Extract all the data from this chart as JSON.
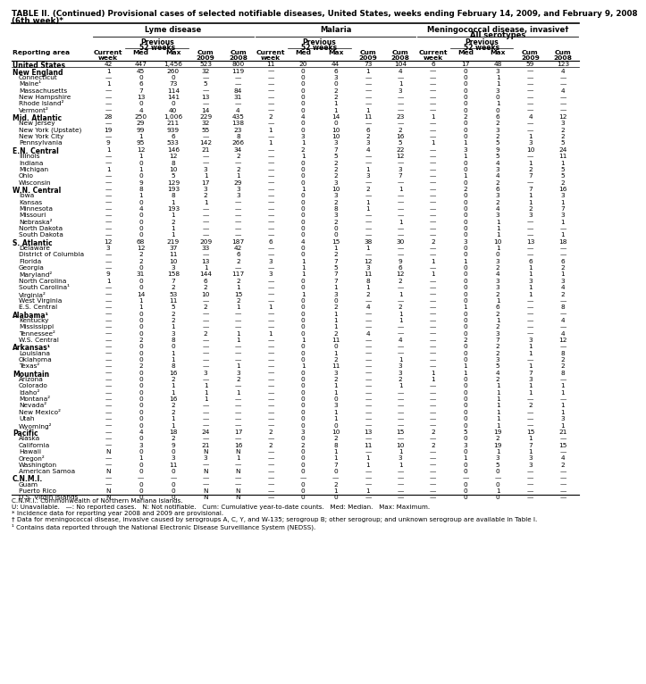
{
  "title": "TABLE II. (Continued) Provisional cases of selected notifiable diseases, United States, weeks ending February 14, 2009, and February 9, 2008",
  "subtitle": "(6th week)*",
  "rows": [
    [
      "United States",
      "42",
      "447",
      "1,456",
      "523",
      "800",
      "11",
      "20",
      "44",
      "73",
      "104",
      "6",
      "17",
      "48",
      "59",
      "123"
    ],
    [
      "New England",
      "1",
      "45",
      "260",
      "32",
      "119",
      "—",
      "0",
      "6",
      "1",
      "4",
      "—",
      "0",
      "3",
      "—",
      "4"
    ],
    [
      "Connecticut",
      "—",
      "0",
      "0",
      "—",
      "—",
      "—",
      "0",
      "3",
      "—",
      "—",
      "—",
      "0",
      "1",
      "—",
      "—"
    ],
    [
      "Maine¹",
      "1",
      "6",
      "73",
      "5",
      "—",
      "—",
      "0",
      "0",
      "—",
      "1",
      "—",
      "0",
      "1",
      "—",
      "—"
    ],
    [
      "Massachusetts",
      "—",
      "7",
      "114",
      "—",
      "84",
      "—",
      "0",
      "2",
      "—",
      "3",
      "—",
      "0",
      "3",
      "—",
      "4"
    ],
    [
      "New Hampshire",
      "—",
      "13",
      "141",
      "13",
      "31",
      "—",
      "0",
      "2",
      "—",
      "—",
      "—",
      "0",
      "0",
      "—",
      "—"
    ],
    [
      "Rhode Island²",
      "—",
      "0",
      "0",
      "—",
      "—",
      "—",
      "0",
      "1",
      "—",
      "—",
      "—",
      "0",
      "1",
      "—",
      "—"
    ],
    [
      "Vermont²",
      "—",
      "4",
      "40",
      "14",
      "4",
      "—",
      "0",
      "1",
      "1",
      "—",
      "—",
      "0",
      "0",
      "—",
      "—"
    ],
    [
      "Mid. Atlantic",
      "28",
      "250",
      "1,006",
      "229",
      "435",
      "2",
      "4",
      "14",
      "11",
      "23",
      "1",
      "2",
      "6",
      "4",
      "12"
    ],
    [
      "New Jersey",
      "—",
      "29",
      "211",
      "32",
      "138",
      "—",
      "0",
      "0",
      "—",
      "—",
      "—",
      "0",
      "2",
      "—",
      "3"
    ],
    [
      "New York (Upstate)",
      "19",
      "99",
      "939",
      "55",
      "23",
      "1",
      "0",
      "10",
      "6",
      "2",
      "—",
      "0",
      "3",
      "—",
      "2"
    ],
    [
      "New York City",
      "—",
      "1",
      "6",
      "—",
      "8",
      "—",
      "3",
      "10",
      "2",
      "16",
      "—",
      "0",
      "2",
      "1",
      "2"
    ],
    [
      "Pennsylvania",
      "9",
      "95",
      "533",
      "142",
      "266",
      "1",
      "1",
      "3",
      "3",
      "5",
      "1",
      "1",
      "5",
      "3",
      "5"
    ],
    [
      "E.N. Central",
      "1",
      "12",
      "146",
      "21",
      "34",
      "—",
      "2",
      "7",
      "4",
      "22",
      "—",
      "3",
      "9",
      "10",
      "24"
    ],
    [
      "Illinois",
      "—",
      "1",
      "12",
      "—",
      "2",
      "—",
      "1",
      "5",
      "—",
      "12",
      "—",
      "1",
      "5",
      "—",
      "11"
    ],
    [
      "Indiana",
      "—",
      "0",
      "8",
      "—",
      "—",
      "—",
      "0",
      "2",
      "—",
      "—",
      "—",
      "0",
      "4",
      "1",
      "1"
    ],
    [
      "Michigan",
      "1",
      "1",
      "10",
      "3",
      "2",
      "—",
      "0",
      "2",
      "1",
      "3",
      "—",
      "0",
      "3",
      "2",
      "5"
    ],
    [
      "Ohio",
      "—",
      "0",
      "5",
      "1",
      "1",
      "—",
      "0",
      "2",
      "3",
      "7",
      "—",
      "1",
      "4",
      "7",
      "5"
    ],
    [
      "Wisconsin",
      "—",
      "9",
      "129",
      "17",
      "29",
      "—",
      "0",
      "3",
      "—",
      "—",
      "—",
      "0",
      "2",
      "—",
      "2"
    ],
    [
      "W.N. Central",
      "—",
      "8",
      "193",
      "3",
      "3",
      "—",
      "1",
      "10",
      "2",
      "1",
      "—",
      "2",
      "6",
      "7",
      "16"
    ],
    [
      "Iowa",
      "—",
      "1",
      "8",
      "2",
      "3",
      "—",
      "0",
      "3",
      "—",
      "—",
      "—",
      "0",
      "3",
      "1",
      "3"
    ],
    [
      "Kansas",
      "—",
      "0",
      "1",
      "1",
      "—",
      "—",
      "0",
      "2",
      "1",
      "—",
      "—",
      "0",
      "2",
      "1",
      "1"
    ],
    [
      "Minnesota",
      "—",
      "4",
      "193",
      "—",
      "—",
      "—",
      "0",
      "8",
      "1",
      "—",
      "—",
      "0",
      "4",
      "2",
      "7"
    ],
    [
      "Missouri",
      "—",
      "0",
      "1",
      "—",
      "—",
      "—",
      "0",
      "3",
      "—",
      "—",
      "—",
      "0",
      "3",
      "3",
      "3"
    ],
    [
      "Nebraska²",
      "—",
      "0",
      "2",
      "—",
      "—",
      "—",
      "0",
      "2",
      "—",
      "1",
      "—",
      "0",
      "1",
      "—",
      "1"
    ],
    [
      "North Dakota",
      "—",
      "0",
      "1",
      "—",
      "—",
      "—",
      "0",
      "0",
      "—",
      "—",
      "—",
      "0",
      "1",
      "—",
      "—"
    ],
    [
      "South Dakota",
      "—",
      "0",
      "1",
      "—",
      "—",
      "—",
      "0",
      "0",
      "—",
      "—",
      "—",
      "0",
      "1",
      "—",
      "1"
    ],
    [
      "S. Atlantic",
      "12",
      "68",
      "219",
      "209",
      "187",
      "6",
      "4",
      "15",
      "38",
      "30",
      "2",
      "3",
      "10",
      "13",
      "18"
    ],
    [
      "Delaware",
      "3",
      "12",
      "37",
      "33",
      "42",
      "—",
      "0",
      "1",
      "1",
      "—",
      "—",
      "0",
      "1",
      "—",
      "—"
    ],
    [
      "District of Columbia",
      "—",
      "2",
      "11",
      "—",
      "6",
      "—",
      "0",
      "2",
      "—",
      "—",
      "—",
      "0",
      "0",
      "—",
      "—"
    ],
    [
      "Florida",
      "—",
      "2",
      "10",
      "13",
      "2",
      "3",
      "1",
      "7",
      "12",
      "9",
      "1",
      "1",
      "3",
      "6",
      "6"
    ],
    [
      "Georgia",
      "—",
      "0",
      "3",
      "1",
      "—",
      "—",
      "1",
      "5",
      "3",
      "6",
      "—",
      "0",
      "2",
      "1",
      "2"
    ],
    [
      "Maryland²",
      "9",
      "31",
      "158",
      "144",
      "117",
      "3",
      "1",
      "7",
      "11",
      "12",
      "1",
      "0",
      "4",
      "1",
      "1"
    ],
    [
      "North Carolina",
      "1",
      "0",
      "7",
      "6",
      "2",
      "—",
      "0",
      "7",
      "8",
      "2",
      "—",
      "0",
      "3",
      "3",
      "3"
    ],
    [
      "South Carolina¹",
      "—",
      "0",
      "2",
      "2",
      "1",
      "—",
      "0",
      "1",
      "1",
      "—",
      "—",
      "0",
      "3",
      "1",
      "4"
    ],
    [
      "Virginia²",
      "—",
      "14",
      "53",
      "10",
      "15",
      "—",
      "1",
      "3",
      "2",
      "1",
      "—",
      "0",
      "2",
      "1",
      "2"
    ],
    [
      "West Virginia",
      "—",
      "1",
      "11",
      "—",
      "2",
      "—",
      "0",
      "0",
      "—",
      "—",
      "—",
      "0",
      "1",
      "—",
      "—"
    ],
    [
      "E.S. Central",
      "—",
      "1",
      "5",
      "2",
      "1",
      "1",
      "0",
      "2",
      "4",
      "2",
      "—",
      "1",
      "6",
      "—",
      "8"
    ],
    [
      "Alabama¹",
      "—",
      "0",
      "2",
      "—",
      "—",
      "—",
      "0",
      "1",
      "—",
      "1",
      "—",
      "0",
      "2",
      "—",
      "—"
    ],
    [
      "Kentucky",
      "—",
      "0",
      "2",
      "—",
      "—",
      "—",
      "0",
      "1",
      "—",
      "1",
      "—",
      "0",
      "1",
      "—",
      "4"
    ],
    [
      "Mississippi",
      "—",
      "0",
      "1",
      "—",
      "—",
      "—",
      "0",
      "1",
      "—",
      "—",
      "—",
      "0",
      "2",
      "—",
      "—"
    ],
    [
      "Tennessee²",
      "—",
      "0",
      "3",
      "2",
      "1",
      "1",
      "0",
      "2",
      "4",
      "—",
      "—",
      "0",
      "3",
      "—",
      "4"
    ],
    [
      "W.S. Central",
      "—",
      "2",
      "8",
      "—",
      "1",
      "—",
      "1",
      "11",
      "—",
      "4",
      "—",
      "2",
      "7",
      "3",
      "12"
    ],
    [
      "Arkansas¹",
      "—",
      "0",
      "0",
      "—",
      "—",
      "—",
      "0",
      "0",
      "—",
      "—",
      "—",
      "0",
      "2",
      "1",
      "—"
    ],
    [
      "Louisiana",
      "—",
      "0",
      "1",
      "—",
      "—",
      "—",
      "0",
      "1",
      "—",
      "—",
      "—",
      "0",
      "2",
      "1",
      "8"
    ],
    [
      "Oklahoma",
      "—",
      "0",
      "1",
      "—",
      "—",
      "—",
      "0",
      "2",
      "—",
      "1",
      "—",
      "0",
      "3",
      "—",
      "2"
    ],
    [
      "Texas²",
      "—",
      "2",
      "8",
      "—",
      "1",
      "—",
      "1",
      "11",
      "—",
      "3",
      "—",
      "1",
      "5",
      "1",
      "2"
    ],
    [
      "Mountain",
      "—",
      "0",
      "16",
      "3",
      "3",
      "—",
      "0",
      "3",
      "—",
      "3",
      "1",
      "1",
      "4",
      "7",
      "8"
    ],
    [
      "Arizona",
      "—",
      "0",
      "2",
      "—",
      "2",
      "—",
      "0",
      "2",
      "—",
      "2",
      "1",
      "0",
      "2",
      "3",
      "—"
    ],
    [
      "Colorado",
      "—",
      "0",
      "1",
      "1",
      "—",
      "—",
      "0",
      "1",
      "—",
      "1",
      "—",
      "0",
      "1",
      "1",
      "1"
    ],
    [
      "Idaho²",
      "—",
      "0",
      "1",
      "1",
      "1",
      "—",
      "0",
      "1",
      "—",
      "—",
      "—",
      "0",
      "1",
      "1",
      "1"
    ],
    [
      "Montana²",
      "—",
      "0",
      "16",
      "1",
      "—",
      "—",
      "0",
      "0",
      "—",
      "—",
      "—",
      "0",
      "1",
      "—",
      "—"
    ],
    [
      "Nevada²",
      "—",
      "0",
      "2",
      "—",
      "—",
      "—",
      "0",
      "3",
      "—",
      "—",
      "—",
      "0",
      "1",
      "2",
      "1"
    ],
    [
      "New Mexico²",
      "—",
      "0",
      "2",
      "—",
      "—",
      "—",
      "0",
      "1",
      "—",
      "—",
      "—",
      "0",
      "1",
      "—",
      "1"
    ],
    [
      "Utah",
      "—",
      "0",
      "1",
      "—",
      "—",
      "—",
      "0",
      "1",
      "—",
      "—",
      "—",
      "0",
      "1",
      "—",
      "3"
    ],
    [
      "Wyoming²",
      "—",
      "0",
      "1",
      "—",
      "—",
      "—",
      "0",
      "0",
      "—",
      "—",
      "—",
      "0",
      "1",
      "—",
      "1"
    ],
    [
      "Pacific",
      "—",
      "4",
      "18",
      "24",
      "17",
      "2",
      "3",
      "10",
      "13",
      "15",
      "2",
      "5",
      "19",
      "15",
      "21"
    ],
    [
      "Alaska",
      "—",
      "0",
      "2",
      "—",
      "—",
      "—",
      "0",
      "2",
      "—",
      "—",
      "—",
      "0",
      "2",
      "1",
      "—"
    ],
    [
      "California",
      "—",
      "3",
      "9",
      "21",
      "16",
      "2",
      "2",
      "8",
      "11",
      "10",
      "2",
      "3",
      "19",
      "7",
      "15"
    ],
    [
      "Hawaii",
      "N",
      "0",
      "0",
      "N",
      "N",
      "—",
      "0",
      "1",
      "—",
      "1",
      "—",
      "0",
      "1",
      "1",
      "—"
    ],
    [
      "Oregon²",
      "—",
      "1",
      "3",
      "3",
      "1",
      "—",
      "0",
      "1",
      "1",
      "3",
      "—",
      "1",
      "3",
      "3",
      "4"
    ],
    [
      "Washington",
      "—",
      "0",
      "11",
      "—",
      "—",
      "—",
      "0",
      "7",
      "1",
      "1",
      "—",
      "0",
      "5",
      "3",
      "2"
    ],
    [
      "American Samoa",
      "N",
      "0",
      "0",
      "N",
      "N",
      "—",
      "0",
      "0",
      "—",
      "—",
      "—",
      "0",
      "0",
      "—",
      "—"
    ],
    [
      "C.N.M.I.",
      "—",
      "—",
      "—",
      "—",
      "—",
      "—",
      "—",
      "—",
      "—",
      "—",
      "—",
      "—",
      "—",
      "—",
      "—"
    ],
    [
      "Guam",
      "—",
      "0",
      "0",
      "—",
      "—",
      "—",
      "0",
      "2",
      "—",
      "—",
      "—",
      "0",
      "0",
      "—",
      "—"
    ],
    [
      "Puerto Rico",
      "N",
      "0",
      "0",
      "N",
      "N",
      "—",
      "0",
      "1",
      "1",
      "—",
      "—",
      "0",
      "1",
      "—",
      "—"
    ],
    [
      "U.S. Virgin Islands",
      "N",
      "0",
      "0",
      "N",
      "N",
      "—",
      "0",
      "0",
      "—",
      "—",
      "—",
      "0",
      "0",
      "—",
      "—"
    ]
  ],
  "bold_rows": [
    0,
    1,
    8,
    13,
    19,
    27,
    38,
    43,
    47,
    56,
    63
  ],
  "footnotes": [
    "C.N.M.I.: Commonwealth of Northern Mariana Islands.",
    "U: Unavailable.   —: No reported cases.   N: Not notifiable.   Cum: Cumulative year-to-date counts.   Med: Median.   Max: Maximum.",
    "* Incidence data for reporting year 2008 and 2009 are provisional.",
    "† Data for meningococcal disease, invasive caused by serogroups A, C, Y, and W-135; serogroup B; other serogroup; and unknown serogroup are available in Table I.",
    "¹ Contains data reported through the National Electronic Disease Surveillance System (NEDSS)."
  ]
}
